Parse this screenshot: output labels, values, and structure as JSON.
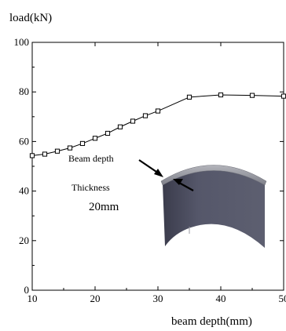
{
  "chart_data": {
    "type": "line",
    "title": "",
    "xlabel": "beam depth(mm)",
    "ylabel": "load(kN)",
    "xlim": [
      10,
      50
    ],
    "ylim": [
      0,
      100
    ],
    "x_ticks": [
      10,
      20,
      30,
      40,
      50
    ],
    "y_ticks": [
      0,
      20,
      40,
      60,
      80,
      100
    ],
    "grid": false,
    "marker": "open-square",
    "series": [
      {
        "x": [
          10,
          12,
          14,
          16,
          18,
          20,
          22,
          24,
          26,
          28,
          30,
          35,
          40,
          45,
          50
        ],
        "y": [
          54.3,
          54.9,
          56.1,
          57.4,
          59.2,
          61.3,
          63.3,
          65.9,
          68.2,
          70.4,
          72.3,
          77.9,
          78.8,
          78.6,
          78.3
        ]
      }
    ]
  },
  "inset": {
    "label_beam_depth": "Beam depth",
    "label_thickness": "Thickness",
    "thickness_value": "20mm",
    "colors": {
      "body_front": "#4e5062",
      "body_dark": "#3b3c4c",
      "top_cap": "#8d8e96",
      "top_highlight": "#b3b4bb"
    }
  },
  "colors": {
    "line": "#000000",
    "marker_fill": "#ffffff",
    "axis": "#000000"
  }
}
